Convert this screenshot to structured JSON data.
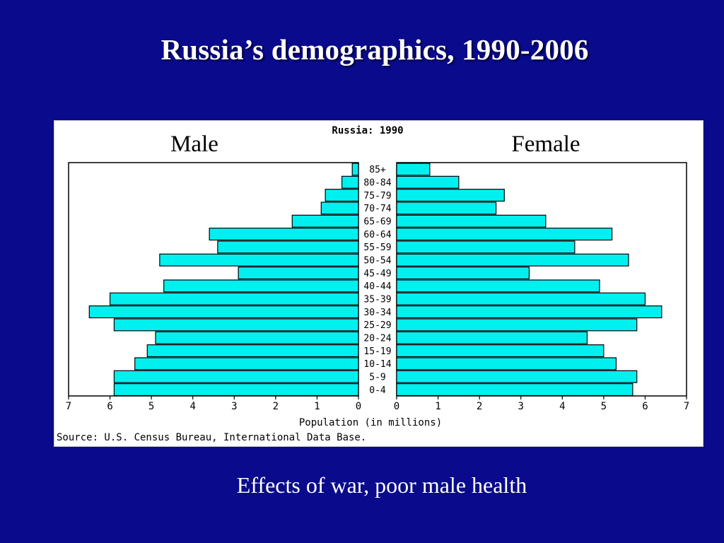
{
  "slide": {
    "title": "Russia’s demographics, 1990-2006",
    "caption": "Effects of war, poor male health"
  },
  "chart_data": {
    "type": "bar",
    "orientation": "horizontal-population-pyramid",
    "title": "Russia: 1990",
    "left_label": "Male",
    "right_label": "Female",
    "xlabel": "Population (in millions)",
    "source": "Source: U.S. Census Bureau, International Data Base.",
    "xlim": [
      0,
      7
    ],
    "x_ticks": [
      7,
      6,
      5,
      4,
      3,
      2,
      1,
      0
    ],
    "x_ticks_right": [
      0,
      1,
      2,
      3,
      4,
      5,
      6,
      7
    ],
    "categories": [
      "85+",
      "80-84",
      "75-79",
      "70-74",
      "65-69",
      "60-64",
      "55-59",
      "50-54",
      "45-49",
      "40-44",
      "35-39",
      "30-34",
      "25-29",
      "20-24",
      "15-19",
      "10-14",
      "5-9",
      "0-4"
    ],
    "series": [
      {
        "name": "Male",
        "values": [
          0.15,
          0.4,
          0.8,
          0.9,
          1.6,
          3.6,
          3.4,
          4.8,
          2.9,
          4.7,
          6.0,
          6.5,
          5.9,
          4.9,
          5.1,
          5.4,
          5.9,
          5.9
        ]
      },
      {
        "name": "Female",
        "values": [
          0.8,
          1.5,
          2.6,
          2.4,
          3.6,
          5.2,
          4.3,
          5.6,
          3.2,
          4.9,
          6.0,
          6.4,
          5.8,
          4.6,
          5.0,
          5.3,
          5.8,
          5.7
        ]
      }
    ],
    "bar_color": "#00f0f0",
    "grid": false
  }
}
